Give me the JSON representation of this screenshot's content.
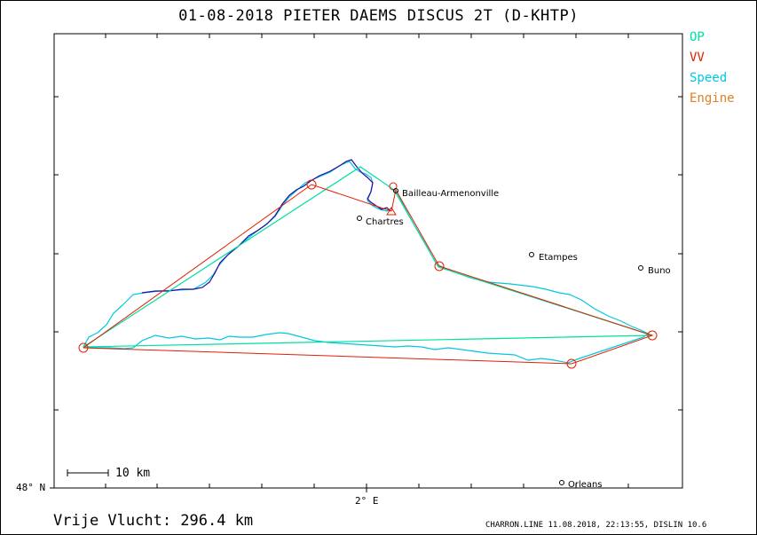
{
  "header": {
    "title": "01-08-2018    PIETER DAEMS    DISCUS 2T (D-KHTP)"
  },
  "legend": {
    "items": [
      {
        "label": "OP",
        "color": "#00e0a0"
      },
      {
        "label": "VV",
        "color": "#e02000"
      },
      {
        "label": "Speed",
        "color": "#00c8e0"
      },
      {
        "label": "Engine",
        "color": "#e08020"
      }
    ]
  },
  "axes": {
    "lat_label": "48° N",
    "lon_label": "2° E"
  },
  "places": [
    {
      "name": "Bailleau-Armenonville"
    },
    {
      "name": "Chartres"
    },
    {
      "name": "Etampes"
    },
    {
      "name": "Buno"
    },
    {
      "name": "Orleans"
    }
  ],
  "scale": {
    "label": "10 km"
  },
  "summary": {
    "distance": "Vrije Vlucht:  296.4 km"
  },
  "footer": {
    "text": "CHARRON.LINE 11.08.2018, 22:13:55, DISLIN 10.6"
  },
  "colors": {
    "track_climb": "#2a0aa0",
    "track_speed": "#00c8e0",
    "op_line": "#00e0a0",
    "vv_line": "#e02000",
    "turnpoint": "#e02000"
  }
}
